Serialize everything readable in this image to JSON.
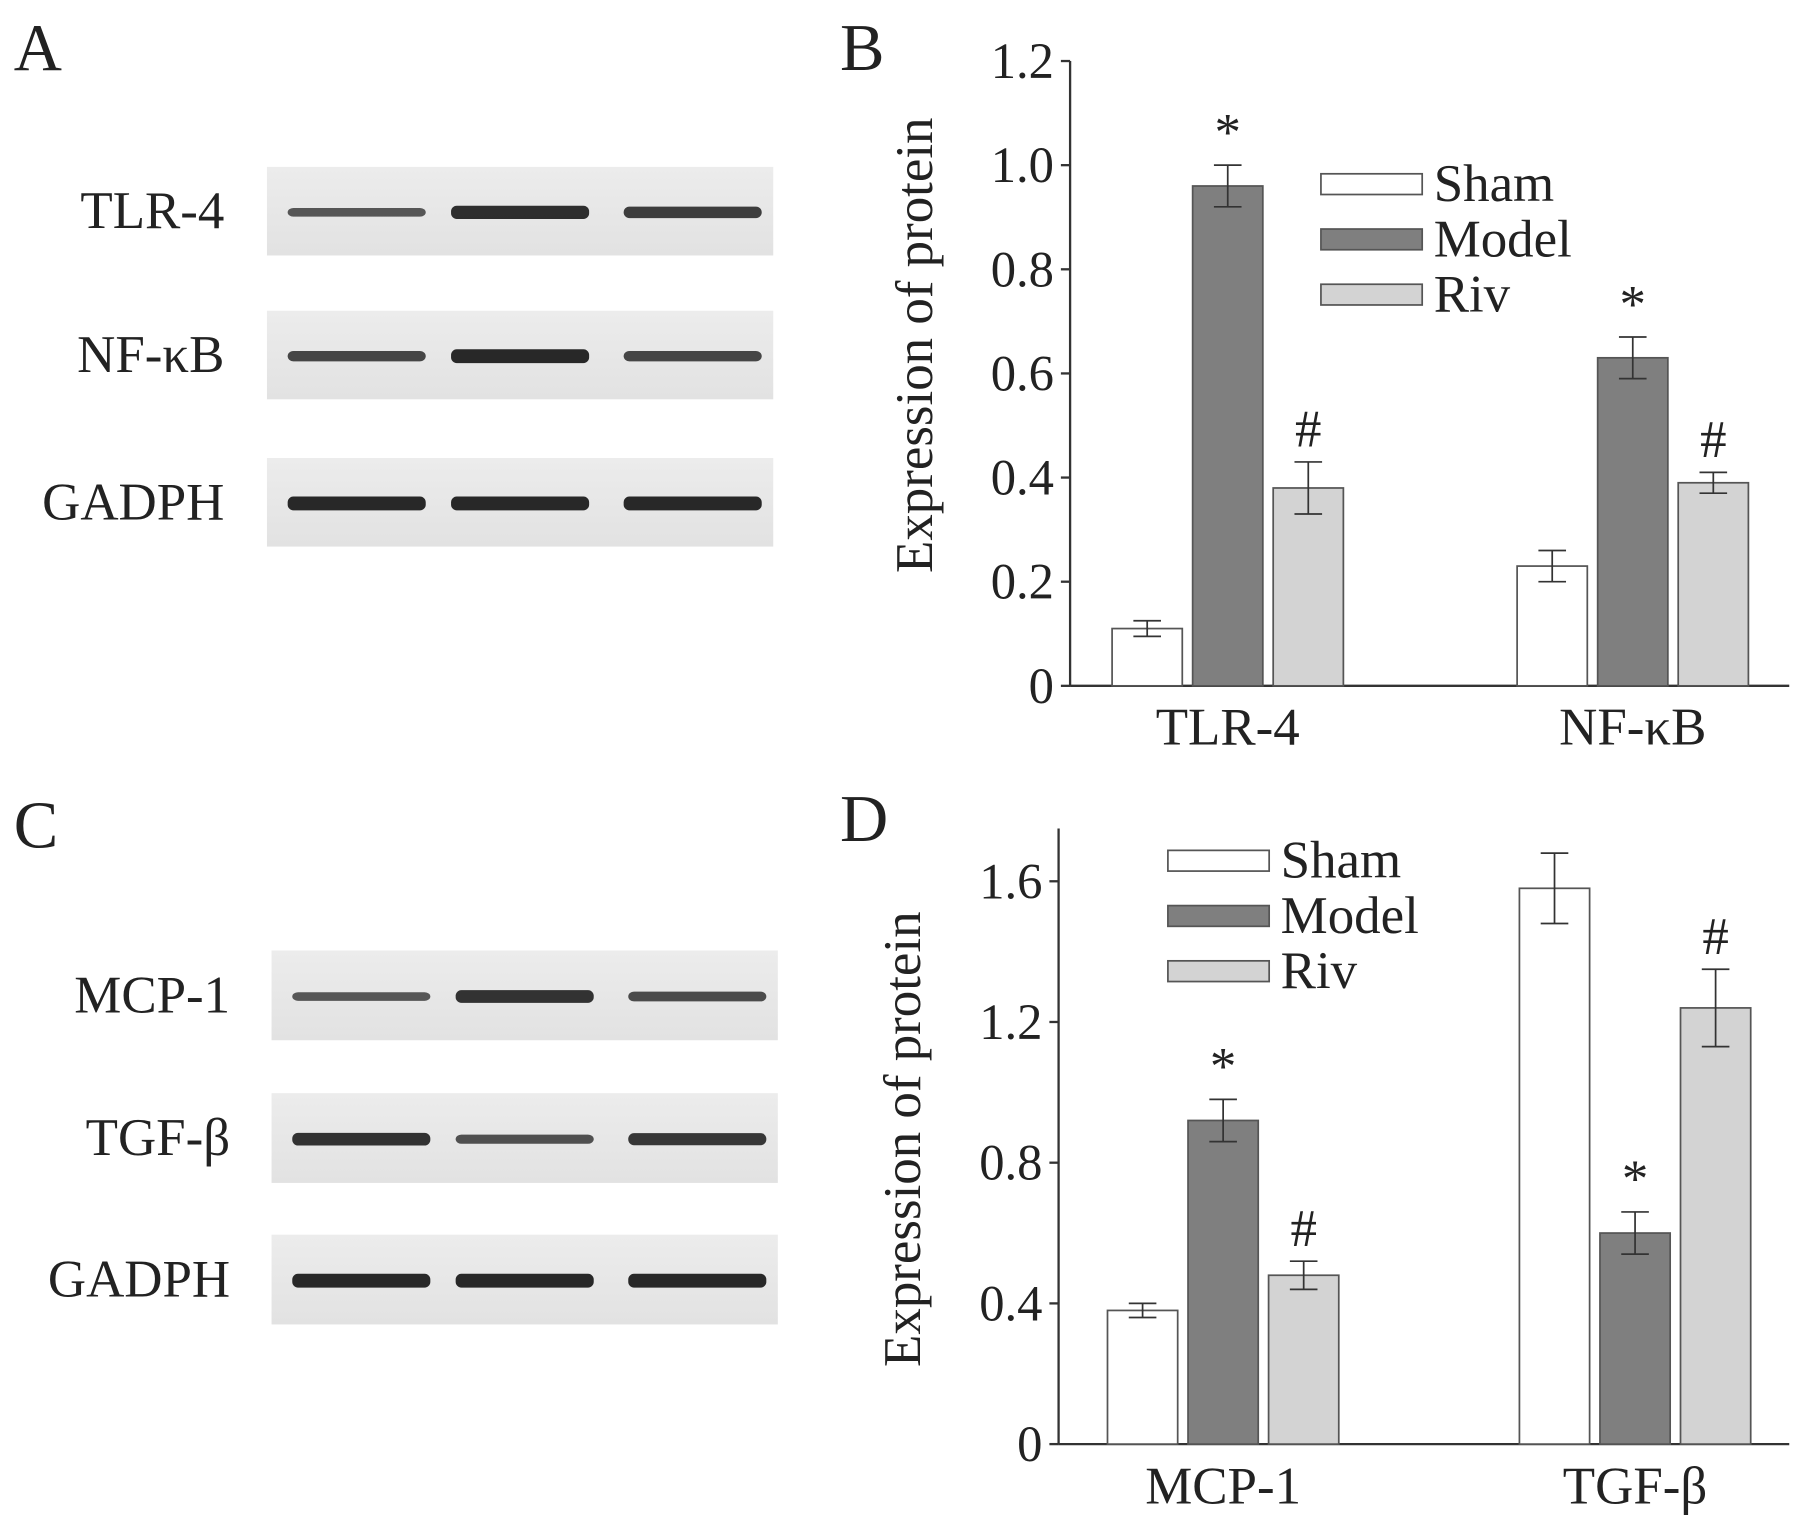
{
  "blots": [
    {
      "panel": "A",
      "rows": [
        "TLR-4",
        "NF-κB",
        "GADPH"
      ]
    },
    {
      "panel": "C",
      "rows": [
        "MCP-1",
        "TGF-β",
        "GADPH"
      ]
    }
  ],
  "chart_data": [
    {
      "type": "bar",
      "panel": "B",
      "ylabel": "Expression of protein",
      "categories": [
        "TLR-4",
        "NF-κB"
      ],
      "series": [
        {
          "name": "Sham",
          "color": "#ffffff",
          "values": [
            0.11,
            0.23
          ],
          "errors": [
            0.015,
            0.03
          ]
        },
        {
          "name": "Model",
          "color": "#7f7f7f",
          "values": [
            0.96,
            0.63
          ],
          "errors": [
            0.04,
            0.04
          ],
          "marks": [
            "*",
            "*"
          ]
        },
        {
          "name": "Riv",
          "color": "#d3d3d3",
          "values": [
            0.38,
            0.39
          ],
          "errors": [
            0.05,
            0.02
          ],
          "marks": [
            "#",
            "#"
          ]
        }
      ],
      "ylim": [
        0,
        1.2
      ],
      "yticks": [
        0,
        0.2,
        0.4,
        0.6,
        0.8,
        {
          "value": 1,
          "label": "1.0"
        },
        1.2
      ],
      "legend": "upper center"
    },
    {
      "type": "bar",
      "panel": "D",
      "ylabel": "Expression of protein",
      "categories": [
        "MCP-1",
        "TGF-β"
      ],
      "series": [
        {
          "name": "Sham",
          "color": "#ffffff",
          "values": [
            0.38,
            1.58
          ],
          "errors": [
            0.02,
            0.1
          ]
        },
        {
          "name": "Model",
          "color": "#7f7f7f",
          "values": [
            0.92,
            0.6
          ],
          "errors": [
            0.06,
            0.06
          ],
          "marks": [
            "*",
            "*"
          ]
        },
        {
          "name": "Riv",
          "color": "#d3d3d3",
          "values": [
            0.48,
            1.24
          ],
          "errors": [
            0.04,
            0.11
          ],
          "marks": [
            "#",
            "#"
          ]
        }
      ],
      "ylim": [
        0,
        1.75
      ],
      "yticks": [
        0,
        0.4,
        0.8,
        1.2,
        1.6
      ],
      "legend": "upper left"
    }
  ]
}
